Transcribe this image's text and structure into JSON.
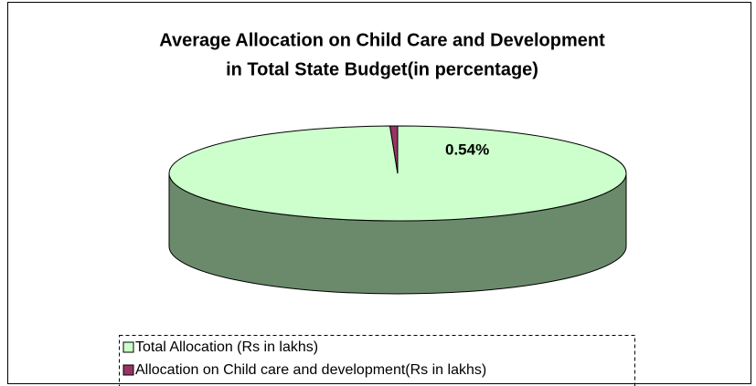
{
  "chart_data": {
    "type": "pie",
    "title": [
      "Average Allocation on Child Care and Development",
      "in Total State Budget(in percentage)"
    ],
    "categories": [
      "Total Allocation (Rs in lakhs)",
      "Allocation on Child care and development(Rs in lakhs)"
    ],
    "values": [
      99.46,
      0.54
    ],
    "value_labels": [
      null,
      "0.54%"
    ],
    "colors": [
      "#ccffcc",
      "#993366"
    ],
    "legend": "bottom"
  }
}
